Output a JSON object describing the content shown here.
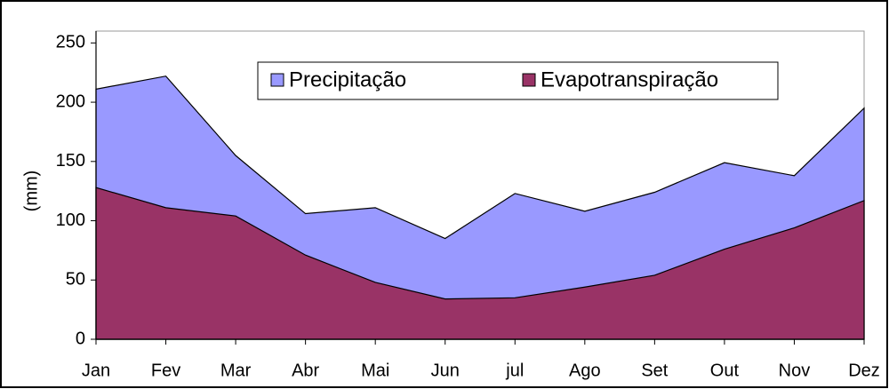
{
  "chart_data": {
    "type": "area",
    "y_label": "(mm)",
    "categories": [
      "Jan",
      "Fev",
      "Mar",
      "Abr",
      "Mai",
      "Jun",
      "jul",
      "Ago",
      "Set",
      "Out",
      "Nov",
      "Dez"
    ],
    "series": [
      {
        "name": "Precipitação",
        "color": "#9999ff",
        "values": [
          211,
          222,
          155,
          106,
          111,
          85,
          123,
          108,
          124,
          149,
          138,
          195
        ]
      },
      {
        "name": "Evapotranspiração",
        "color": "#993366",
        "values": [
          128,
          111,
          104,
          71,
          48,
          34,
          35,
          44,
          54,
          76,
          94,
          117
        ]
      }
    ],
    "ylim": [
      0,
      260
    ],
    "yticks": [
      0,
      50,
      100,
      150,
      200,
      250
    ]
  }
}
